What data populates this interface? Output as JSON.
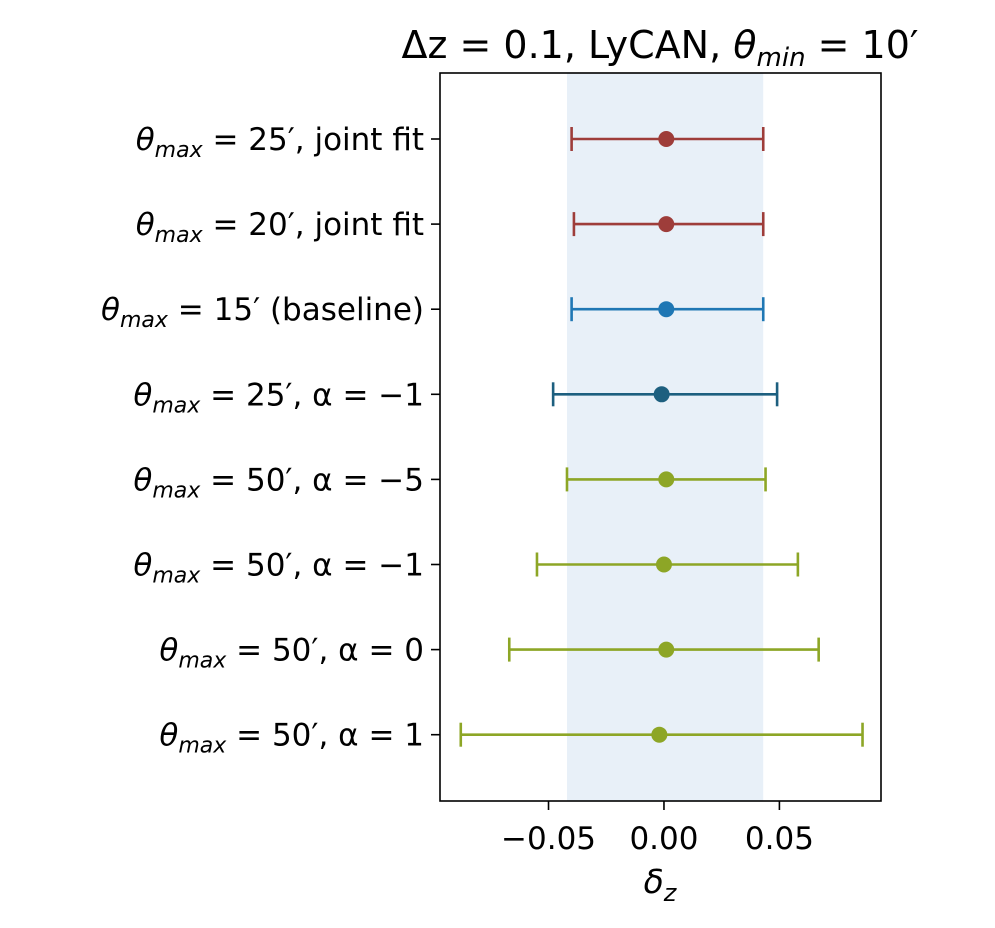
{
  "chart_data": {
    "type": "errorbar",
    "title": "Δz = 0.1, LyCAN, θmin = 10′",
    "title_parts": {
      "lead": "Δz = 0.1, LyCAN, ",
      "theta": "θ",
      "sub": "min",
      "tail": " = 10′"
    },
    "xlabel": "δz",
    "xlabel_parts": {
      "main": "δ",
      "sub": "z"
    },
    "xlim": [
      -0.097,
      0.094
    ],
    "xticks": [
      -0.05,
      0.0,
      0.05
    ],
    "xtick_labels": [
      "−0.05",
      "0.00",
      "0.05"
    ],
    "shaded_band": {
      "from": -0.042,
      "to": 0.043,
      "color": "#e8f0f8"
    },
    "rows": [
      {
        "label": "θmax = 25′, joint fit",
        "label_tail": " = 25′, joint fit",
        "value": 0.001,
        "err_low": 0.041,
        "err_high": 0.042,
        "color": "#9e3d3a"
      },
      {
        "label": "θmax = 20′, joint fit",
        "label_tail": " = 20′, joint fit",
        "value": 0.001,
        "err_low": 0.04,
        "err_high": 0.042,
        "color": "#9e3d3a"
      },
      {
        "label": "θmax = 15′ (baseline)",
        "label_tail": " = 15′ (baseline)",
        "value": 0.001,
        "err_low": 0.041,
        "err_high": 0.042,
        "color": "#1f77b4"
      },
      {
        "label": "θmax = 25′, α = −1",
        "label_tail": " = 25′, α = −1",
        "value": -0.001,
        "err_low": 0.047,
        "err_high": 0.05,
        "color": "#1d5f7f"
      },
      {
        "label": "θmax = 50′, α = −5",
        "label_tail": " = 50′, α = −5",
        "value": 0.001,
        "err_low": 0.043,
        "err_high": 0.043,
        "color": "#8da626"
      },
      {
        "label": "θmax = 50′, α = −1",
        "label_tail": " = 50′, α = −1",
        "value": 0.0,
        "err_low": 0.055,
        "err_high": 0.058,
        "color": "#8da626"
      },
      {
        "label": "θmax = 50′, α = 0",
        "label_tail": " = 50′, α = 0",
        "value": 0.001,
        "err_low": 0.068,
        "err_high": 0.066,
        "color": "#8da626"
      },
      {
        "label": "θmax = 50′, α = 1",
        "label_tail": " = 50′, α = 1",
        "value": -0.002,
        "err_low": 0.086,
        "err_high": 0.088,
        "color": "#8da626"
      }
    ],
    "label_theta": "θ",
    "label_sub": "max"
  }
}
